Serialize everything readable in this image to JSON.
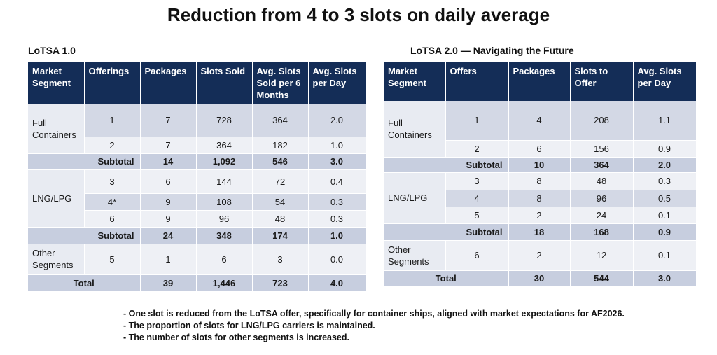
{
  "title": "Reduction from 4 to 3 slots on daily average",
  "lotsa1": {
    "heading": "LoTSA 1.0",
    "columns": [
      "Market Segment",
      "Offerings",
      "Packages",
      "Slots Sold",
      "Avg. Slots Sold per 6 Months",
      "Avg. Slots per Day"
    ],
    "full_containers": {
      "segment": "Full Containers",
      "rows": [
        [
          "1",
          "7",
          "728",
          "364",
          "2.0"
        ],
        [
          "2",
          "7",
          "364",
          "182",
          "1.0"
        ]
      ],
      "subtotal": [
        "Subtotal",
        "14",
        "1,092",
        "546",
        "3.0"
      ]
    },
    "lng": {
      "segment": "LNG/LPG",
      "rows": [
        [
          "3",
          "6",
          "144",
          "72",
          "0.4"
        ],
        [
          "4*",
          "9",
          "108",
          "54",
          "0.3"
        ],
        [
          "6",
          "9",
          "96",
          "48",
          "0.3"
        ]
      ],
      "subtotal": [
        "Subtotal",
        "24",
        "348",
        "174",
        "1.0"
      ]
    },
    "other": {
      "segment": "Other Segments",
      "row": [
        "5",
        "1",
        "6",
        "3",
        "0.0"
      ]
    },
    "total": [
      "Total",
      "39",
      "1,446",
      "723",
      "4.0"
    ]
  },
  "lotsa2": {
    "heading": "LoTSA 2.0 — Navigating the Future",
    "columns": [
      "Market Segment",
      "Offers",
      "Packages",
      "Slots to Offer",
      "Avg. Slots per Day"
    ],
    "full_containers": {
      "segment": "Full Containers",
      "rows": [
        [
          "1",
          "4",
          "208",
          "1.1"
        ],
        [
          "2",
          "6",
          "156",
          "0.9"
        ]
      ],
      "subtotal": [
        "Subtotal",
        "10",
        "364",
        "2.0"
      ]
    },
    "lng": {
      "segment": "LNG/LPG",
      "rows": [
        [
          "3",
          "8",
          "48",
          "0.3"
        ],
        [
          "4",
          "8",
          "96",
          "0.5"
        ],
        [
          "5",
          "2",
          "24",
          "0.1"
        ]
      ],
      "subtotal": [
        "Subtotal",
        "18",
        "168",
        "0.9"
      ]
    },
    "other": {
      "segment": "Other Segments",
      "row": [
        "6",
        "2",
        "12",
        "0.1"
      ]
    },
    "total": [
      "Total",
      "30",
      "544",
      "3.0"
    ]
  },
  "notes": [
    "- One slot is reduced from the LoTSA offer, specifically for container ships, aligned with market expectations for AF2026.",
    "- The proportion of slots for LNG/LPG carriers is maintained.",
    "- The number of slots for other segments is increased."
  ]
}
